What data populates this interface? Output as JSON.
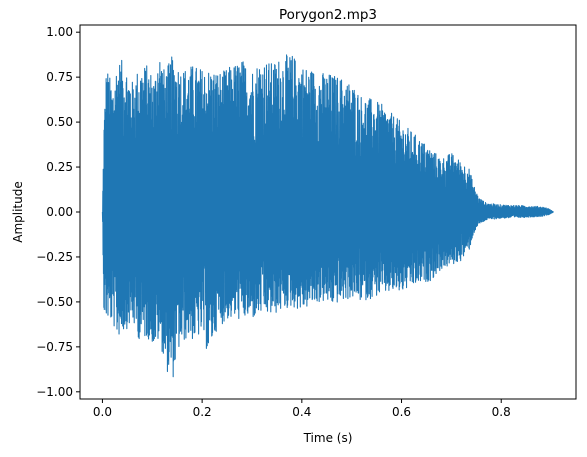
{
  "chart_data": {
    "type": "line",
    "title": "Porygon2.mp3",
    "xlabel": "Time (s)",
    "ylabel": "Amplitude",
    "xlim": [
      -0.045,
      0.95
    ],
    "ylim": [
      -1.04,
      1.04
    ],
    "xticks": [
      {
        "value": 0.0,
        "label": "0.0"
      },
      {
        "value": 0.2,
        "label": "0.2"
      },
      {
        "value": 0.4,
        "label": "0.4"
      },
      {
        "value": 0.6,
        "label": "0.6"
      },
      {
        "value": 0.8,
        "label": "0.8"
      }
    ],
    "yticks": [
      {
        "value": 1.0,
        "label": "1.00"
      },
      {
        "value": 0.75,
        "label": "0.75"
      },
      {
        "value": 0.5,
        "label": "0.50"
      },
      {
        "value": 0.25,
        "label": "0.25"
      },
      {
        "value": 0.0,
        "label": "0.00"
      },
      {
        "value": -0.25,
        "label": "−0.25"
      },
      {
        "value": -0.5,
        "label": "−0.50"
      },
      {
        "value": -0.75,
        "label": "−0.75"
      },
      {
        "value": -1.0,
        "label": "−1.00"
      }
    ],
    "grid": false,
    "series": [
      {
        "color": "#1f77b4",
        "duration": 0.905,
        "envelope_upper": [
          [
            0.0,
            0.0
          ],
          [
            0.003,
            0.5
          ],
          [
            0.008,
            0.82
          ],
          [
            0.02,
            0.7
          ],
          [
            0.03,
            0.85
          ],
          [
            0.045,
            0.84
          ],
          [
            0.06,
            0.73
          ],
          [
            0.075,
            0.82
          ],
          [
            0.09,
            0.82
          ],
          [
            0.105,
            0.75
          ],
          [
            0.112,
            0.94
          ],
          [
            0.125,
            0.78
          ],
          [
            0.14,
            0.87
          ],
          [
            0.16,
            0.8
          ],
          [
            0.18,
            0.82
          ],
          [
            0.2,
            0.8
          ],
          [
            0.22,
            0.8
          ],
          [
            0.24,
            0.78
          ],
          [
            0.26,
            0.82
          ],
          [
            0.28,
            0.85
          ],
          [
            0.3,
            0.8
          ],
          [
            0.32,
            0.86
          ],
          [
            0.34,
            0.83
          ],
          [
            0.36,
            0.87
          ],
          [
            0.38,
            0.88
          ],
          [
            0.4,
            0.82
          ],
          [
            0.42,
            0.8
          ],
          [
            0.44,
            0.78
          ],
          [
            0.46,
            0.77
          ],
          [
            0.48,
            0.75
          ],
          [
            0.5,
            0.72
          ],
          [
            0.52,
            0.65
          ],
          [
            0.54,
            0.63
          ],
          [
            0.56,
            0.6
          ],
          [
            0.58,
            0.55
          ],
          [
            0.6,
            0.5
          ],
          [
            0.62,
            0.45
          ],
          [
            0.64,
            0.4
          ],
          [
            0.66,
            0.35
          ],
          [
            0.68,
            0.3
          ],
          [
            0.7,
            0.33
          ],
          [
            0.72,
            0.28
          ],
          [
            0.735,
            0.25
          ],
          [
            0.745,
            0.15
          ],
          [
            0.755,
            0.08
          ],
          [
            0.77,
            0.05
          ],
          [
            0.8,
            0.04
          ],
          [
            0.85,
            0.035
          ],
          [
            0.88,
            0.03
          ],
          [
            0.895,
            0.02
          ],
          [
            0.905,
            0.0
          ]
        ],
        "envelope_lower": [
          [
            0.0,
            0.0
          ],
          [
            0.003,
            -0.58
          ],
          [
            0.008,
            -0.6
          ],
          [
            0.02,
            -0.62
          ],
          [
            0.03,
            -0.7
          ],
          [
            0.045,
            -0.66
          ],
          [
            0.06,
            -0.62
          ],
          [
            0.075,
            -0.72
          ],
          [
            0.09,
            -0.7
          ],
          [
            0.105,
            -0.75
          ],
          [
            0.115,
            -0.72
          ],
          [
            0.128,
            -0.88
          ],
          [
            0.14,
            -0.95
          ],
          [
            0.152,
            -0.78
          ],
          [
            0.17,
            -0.7
          ],
          [
            0.185,
            -0.72
          ],
          [
            0.2,
            -0.68
          ],
          [
            0.212,
            -0.8
          ],
          [
            0.23,
            -0.65
          ],
          [
            0.25,
            -0.6
          ],
          [
            0.27,
            -0.6
          ],
          [
            0.3,
            -0.6
          ],
          [
            0.32,
            -0.57
          ],
          [
            0.34,
            -0.58
          ],
          [
            0.36,
            -0.55
          ],
          [
            0.38,
            -0.53
          ],
          [
            0.4,
            -0.55
          ],
          [
            0.42,
            -0.52
          ],
          [
            0.44,
            -0.5
          ],
          [
            0.46,
            -0.52
          ],
          [
            0.48,
            -0.5
          ],
          [
            0.5,
            -0.48
          ],
          [
            0.52,
            -0.5
          ],
          [
            0.54,
            -0.48
          ],
          [
            0.56,
            -0.46
          ],
          [
            0.58,
            -0.45
          ],
          [
            0.6,
            -0.45
          ],
          [
            0.62,
            -0.42
          ],
          [
            0.64,
            -0.4
          ],
          [
            0.66,
            -0.38
          ],
          [
            0.68,
            -0.32
          ],
          [
            0.7,
            -0.3
          ],
          [
            0.72,
            -0.27
          ],
          [
            0.735,
            -0.22
          ],
          [
            0.745,
            -0.12
          ],
          [
            0.755,
            -0.07
          ],
          [
            0.77,
            -0.045
          ],
          [
            0.8,
            -0.035
          ],
          [
            0.85,
            -0.03
          ],
          [
            0.88,
            -0.025
          ],
          [
            0.895,
            -0.015
          ],
          [
            0.905,
            0.0
          ]
        ]
      }
    ]
  }
}
